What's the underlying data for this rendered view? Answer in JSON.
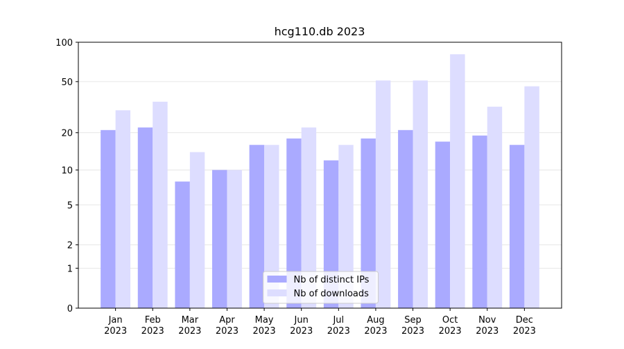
{
  "chart_data": {
    "type": "bar",
    "title": "hcg110.db 2023",
    "categories": [
      "Jan 2023",
      "Feb 2023",
      "Mar 2023",
      "Apr 2023",
      "May 2023",
      "Jun 2023",
      "Jul 2023",
      "Aug 2023",
      "Sep 2023",
      "Oct 2023",
      "Nov 2023",
      "Dec 2023"
    ],
    "series": [
      {
        "name": "Nb of distinct IPs",
        "color": "#aaaaff",
        "values": [
          21,
          22,
          8,
          10,
          16,
          18,
          12,
          18,
          21,
          17,
          19,
          16
        ]
      },
      {
        "name": "Nb of downloads",
        "color": "#ddddff",
        "values": [
          30,
          35,
          14,
          10,
          16,
          22,
          16,
          51,
          51,
          81,
          32,
          46
        ]
      }
    ],
    "yscale": "symlog",
    "ylim": [
      0,
      100
    ],
    "yticks": [
      0,
      1,
      2,
      5,
      10,
      20,
      50,
      100
    ],
    "grid": true,
    "legend": "lower center"
  }
}
